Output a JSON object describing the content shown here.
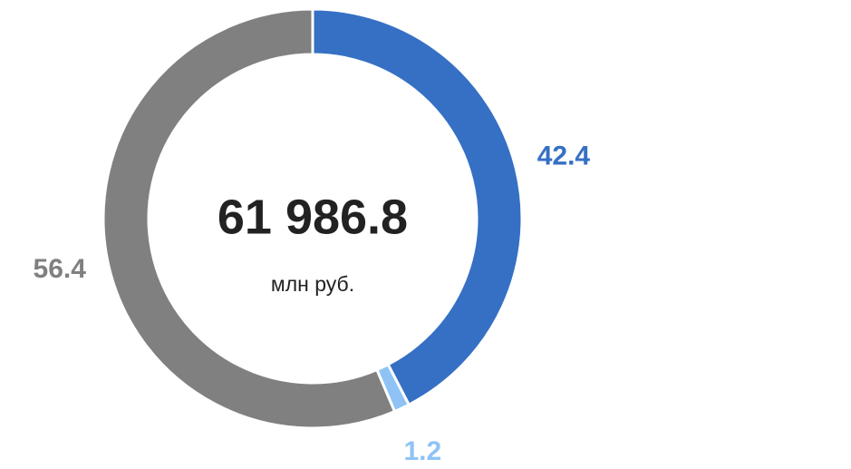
{
  "chart_data": {
    "type": "donut",
    "center_value": "61 986.8",
    "center_label": "млн руб.",
    "series": [
      {
        "color": "#3670c4",
        "values": [
          42.4
        ]
      },
      {
        "color": "#8fc3f5",
        "values": [
          1.2
        ]
      },
      {
        "color": "#808080",
        "values": [
          56.4
        ]
      }
    ]
  }
}
